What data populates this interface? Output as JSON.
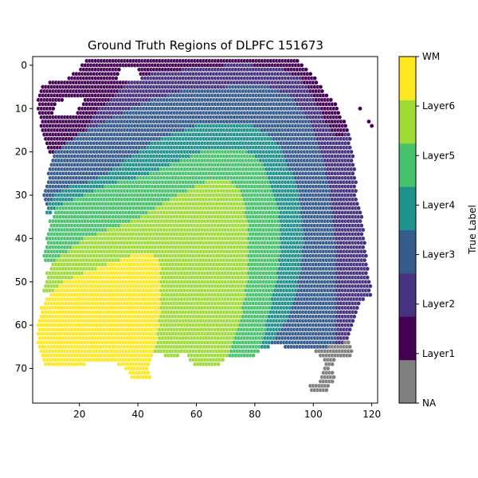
{
  "chart_data": {
    "type": "scatter",
    "title": "Ground Truth Regions of DLPFC 151673",
    "xlabel": "",
    "ylabel": "",
    "xlim": [
      4,
      122
    ],
    "ylim": [
      78,
      -2
    ],
    "y_inverted": true,
    "x_ticks": [
      20,
      40,
      60,
      80,
      100,
      120
    ],
    "y_ticks": [
      0,
      10,
      20,
      30,
      40,
      50,
      60,
      70
    ],
    "grid": false,
    "colorbar": {
      "label": "True Label",
      "categories": [
        "NA",
        "Layer1",
        "Layer2",
        "Layer3",
        "Layer4",
        "Layer5",
        "Layer6",
        "WM"
      ],
      "colors": [
        "#808080",
        "#440154",
        "#46327e",
        "#365c8d",
        "#21918c",
        "#4ac16d",
        "#a0da39",
        "#fde725"
      ],
      "ticks": [
        "NA",
        "Layer1",
        "Layer2",
        "Layer3",
        "Layer4",
        "Layer5",
        "Layer6",
        "WM"
      ]
    },
    "grid_spacing": {
      "x": 1,
      "y": 1
    },
    "regions": [
      {
        "label": "Layer1",
        "polygon": [
          [
            22,
            -1
          ],
          [
            37,
            -1
          ],
          [
            60,
            -1
          ],
          [
            72,
            -2
          ],
          [
            84,
            -2
          ],
          [
            95,
            -1
          ],
          [
            98,
            1
          ],
          [
            101,
            3
          ],
          [
            104,
            6
          ],
          [
            108,
            9
          ],
          [
            110,
            12
          ],
          [
            112,
            15
          ],
          [
            110,
            17
          ],
          [
            106,
            15
          ],
          [
            103,
            11
          ],
          [
            99,
            6
          ],
          [
            96,
            3
          ],
          [
            90,
            1
          ],
          [
            80,
            0
          ],
          [
            70,
            0
          ],
          [
            55,
            1
          ],
          [
            45,
            2
          ],
          [
            38,
            4
          ],
          [
            32,
            7
          ],
          [
            27,
            10
          ],
          [
            23,
            14
          ],
          [
            19,
            17
          ],
          [
            16,
            20
          ],
          [
            14,
            24
          ],
          [
            12,
            23
          ],
          [
            10,
            20
          ],
          [
            8,
            17
          ],
          [
            7,
            14
          ],
          [
            6,
            11
          ],
          [
            6,
            8
          ],
          [
            7,
            5
          ],
          [
            10,
            4
          ],
          [
            16,
            3
          ],
          [
            20,
            1
          ]
        ]
      },
      {
        "label": "Layer2",
        "polygon": [
          [
            37,
            4
          ],
          [
            45,
            2
          ],
          [
            55,
            1
          ],
          [
            70,
            0
          ],
          [
            80,
            0
          ],
          [
            90,
            1
          ],
          [
            96,
            3
          ],
          [
            99,
            6
          ],
          [
            103,
            11
          ],
          [
            106,
            15
          ],
          [
            110,
            17
          ],
          [
            112,
            15
          ],
          [
            114,
            22
          ],
          [
            115,
            30
          ],
          [
            117,
            36
          ],
          [
            118,
            42
          ],
          [
            119,
            48
          ],
          [
            120,
            53
          ],
          [
            116,
            55
          ],
          [
            113,
            62
          ],
          [
            110,
            65
          ],
          [
            108,
            64
          ],
          [
            108,
            56
          ],
          [
            108,
            44
          ],
          [
            106,
            30
          ],
          [
            103,
            20
          ],
          [
            98,
            12
          ],
          [
            92,
            7
          ],
          [
            85,
            5
          ],
          [
            70,
            5
          ],
          [
            55,
            6
          ],
          [
            45,
            8
          ],
          [
            38,
            10
          ],
          [
            32,
            12
          ],
          [
            27,
            14
          ],
          [
            23,
            15
          ],
          [
            19,
            17
          ],
          [
            23,
            14
          ],
          [
            27,
            10
          ],
          [
            32,
            7
          ]
        ]
      },
      {
        "label": "Layer3",
        "polygon": [
          [
            23,
            15
          ],
          [
            27,
            14
          ],
          [
            32,
            12
          ],
          [
            38,
            10
          ],
          [
            45,
            8
          ],
          [
            55,
            6
          ],
          [
            70,
            5
          ],
          [
            85,
            5
          ],
          [
            92,
            7
          ],
          [
            98,
            12
          ],
          [
            103,
            20
          ],
          [
            106,
            30
          ],
          [
            108,
            44
          ],
          [
            108,
            56
          ],
          [
            108,
            64
          ],
          [
            105,
            66
          ],
          [
            95,
            66
          ],
          [
            90,
            65
          ],
          [
            86,
            64
          ],
          [
            90,
            60
          ],
          [
            93,
            56
          ],
          [
            95,
            50
          ],
          [
            96,
            45
          ],
          [
            97,
            40
          ],
          [
            96,
            34
          ],
          [
            95,
            28
          ],
          [
            92,
            24
          ],
          [
            89,
            19
          ],
          [
            85,
            16
          ],
          [
            80,
            14
          ],
          [
            70,
            14
          ],
          [
            60,
            14
          ],
          [
            52,
            16
          ],
          [
            45,
            18
          ],
          [
            38,
            21
          ],
          [
            30,
            25
          ],
          [
            23,
            27
          ],
          [
            17,
            28
          ],
          [
            12,
            30
          ],
          [
            9,
            33
          ],
          [
            8,
            30
          ],
          [
            9,
            27
          ],
          [
            10,
            23
          ],
          [
            12,
            20
          ],
          [
            16,
            18
          ],
          [
            20,
            16
          ]
        ]
      },
      {
        "label": "Layer4",
        "polygon": [
          [
            52,
            16
          ],
          [
            60,
            14
          ],
          [
            70,
            14
          ],
          [
            80,
            14
          ],
          [
            85,
            16
          ],
          [
            89,
            19
          ],
          [
            92,
            24
          ],
          [
            95,
            28
          ],
          [
            96,
            34
          ],
          [
            97,
            40
          ],
          [
            96,
            45
          ],
          [
            95,
            50
          ],
          [
            93,
            56
          ],
          [
            90,
            60
          ],
          [
            86,
            64
          ],
          [
            84,
            66
          ],
          [
            82,
            66
          ],
          [
            84,
            60
          ],
          [
            86,
            54
          ],
          [
            88,
            48
          ],
          [
            89,
            40
          ],
          [
            88,
            32
          ],
          [
            85,
            26
          ],
          [
            82,
            22
          ],
          [
            78,
            20
          ],
          [
            70,
            20
          ],
          [
            62,
            20
          ],
          [
            55,
            22
          ],
          [
            48,
            24
          ],
          [
            40,
            26
          ],
          [
            33,
            27
          ],
          [
            25,
            29
          ],
          [
            18,
            31
          ],
          [
            12,
            33
          ],
          [
            9,
            35
          ],
          [
            9,
            33
          ],
          [
            12,
            30
          ],
          [
            17,
            28
          ],
          [
            23,
            27
          ],
          [
            30,
            25
          ],
          [
            38,
            21
          ],
          [
            45,
            18
          ]
        ]
      },
      {
        "label": "Layer5",
        "polygon": [
          [
            55,
            22
          ],
          [
            62,
            20
          ],
          [
            70,
            20
          ],
          [
            78,
            20
          ],
          [
            82,
            22
          ],
          [
            85,
            26
          ],
          [
            88,
            32
          ],
          [
            89,
            40
          ],
          [
            88,
            48
          ],
          [
            86,
            54
          ],
          [
            84,
            60
          ],
          [
            82,
            66
          ],
          [
            80,
            67
          ],
          [
            72,
            68
          ],
          [
            70,
            68
          ],
          [
            74,
            62
          ],
          [
            76,
            56
          ],
          [
            78,
            48
          ],
          [
            78,
            38
          ],
          [
            76,
            30
          ],
          [
            72,
            27
          ],
          [
            66,
            26
          ],
          [
            60,
            28
          ],
          [
            54,
            30
          ],
          [
            46,
            33
          ],
          [
            38,
            36
          ],
          [
            30,
            38
          ],
          [
            22,
            40
          ],
          [
            16,
            43
          ],
          [
            12,
            45
          ],
          [
            9,
            46
          ],
          [
            8,
            44
          ],
          [
            9,
            40
          ],
          [
            10,
            36
          ],
          [
            12,
            33
          ],
          [
            18,
            31
          ],
          [
            25,
            29
          ],
          [
            33,
            27
          ],
          [
            40,
            26
          ],
          [
            48,
            24
          ]
        ]
      },
      {
        "label": "Layer6",
        "polygon": [
          [
            54,
            30
          ],
          [
            60,
            28
          ],
          [
            66,
            26
          ],
          [
            72,
            27
          ],
          [
            76,
            30
          ],
          [
            78,
            38
          ],
          [
            78,
            48
          ],
          [
            76,
            56
          ],
          [
            74,
            62
          ],
          [
            70,
            68
          ],
          [
            66,
            70
          ],
          [
            60,
            70
          ],
          [
            56,
            66
          ],
          [
            52,
            68
          ],
          [
            46,
            66
          ],
          [
            48,
            56
          ],
          [
            48,
            46
          ],
          [
            44,
            43
          ],
          [
            38,
            44
          ],
          [
            30,
            46
          ],
          [
            22,
            48
          ],
          [
            15,
            50
          ],
          [
            10,
            53
          ],
          [
            8,
            52
          ],
          [
            9,
            48
          ],
          [
            12,
            45
          ],
          [
            16,
            43
          ],
          [
            22,
            40
          ],
          [
            30,
            38
          ],
          [
            38,
            36
          ],
          [
            46,
            33
          ]
        ]
      },
      {
        "label": "WM",
        "polygon": [
          [
            38,
            44
          ],
          [
            44,
            43
          ],
          [
            48,
            46
          ],
          [
            48,
            56
          ],
          [
            46,
            66
          ],
          [
            44,
            70
          ],
          [
            45,
            73
          ],
          [
            38,
            73
          ],
          [
            36,
            70
          ],
          [
            30,
            68
          ],
          [
            22,
            69
          ],
          [
            16,
            70
          ],
          [
            8,
            69
          ],
          [
            6,
            65
          ],
          [
            6,
            60
          ],
          [
            7,
            56
          ],
          [
            10,
            53
          ],
          [
            15,
            50
          ],
          [
            22,
            48
          ],
          [
            30,
            46
          ]
        ]
      },
      {
        "label": "NA",
        "polygon": [
          [
            101,
            66
          ],
          [
            105,
            65
          ],
          [
            108,
            64
          ],
          [
            110,
            65
          ],
          [
            112,
            63
          ],
          [
            114,
            66
          ],
          [
            112,
            68
          ],
          [
            108,
            67
          ],
          [
            106,
            70
          ],
          [
            108,
            72
          ],
          [
            104,
            76
          ],
          [
            100,
            76
          ],
          [
            99,
            74
          ],
          [
            102,
            73
          ],
          [
            104,
            68
          ]
        ]
      }
    ],
    "outlier_points": [
      {
        "label": "Layer1",
        "x": 116,
        "y": 10
      },
      {
        "label": "Layer1",
        "x": 119,
        "y": 13
      },
      {
        "label": "Layer1",
        "x": 120,
        "y": 14
      }
    ],
    "holes": [
      [
        [
          34,
          1
        ],
        [
          40,
          1
        ],
        [
          41,
          3
        ],
        [
          36,
          4
        ],
        [
          33,
          3
        ]
      ],
      [
        [
          12,
          9
        ],
        [
          18,
          7
        ],
        [
          22,
          8
        ],
        [
          19,
          11
        ],
        [
          14,
          12
        ],
        [
          11,
          11
        ]
      ]
    ]
  }
}
